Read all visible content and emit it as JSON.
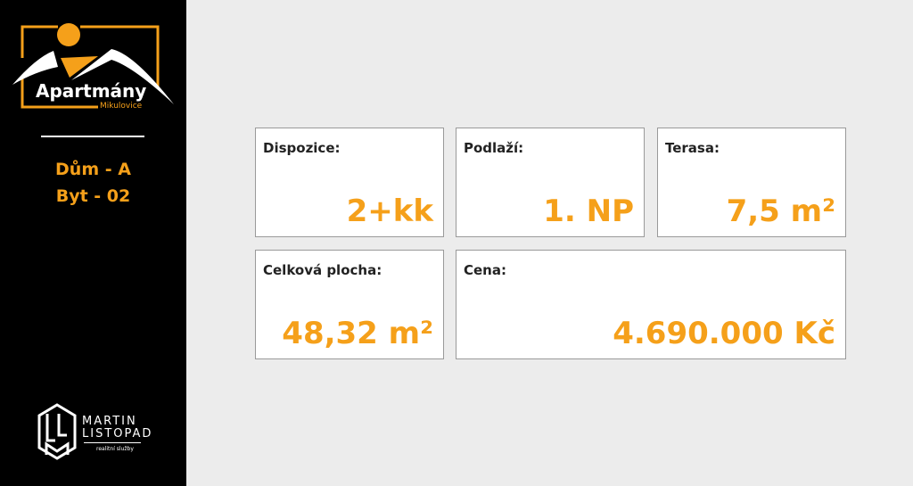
{
  "brand": {
    "title": "Apartmány",
    "subtitle": "Mikulovice"
  },
  "unit": {
    "house": "Dům - A",
    "apartment": "Byt - 02"
  },
  "agency": {
    "line1": "MARTIN",
    "line2": "LISTOPAD",
    "tagline": "realitní služby"
  },
  "cards": [
    {
      "label": "Dispozice:",
      "value": "2+kk"
    },
    {
      "label": "Podlaží:",
      "value": "1. NP"
    },
    {
      "label": "Terasa:",
      "value": "7,5 m²"
    },
    {
      "label": "Celková plocha:",
      "value": "48,32 m²"
    },
    {
      "label": "Cena:",
      "value": "4.690.000 Kč"
    }
  ],
  "colors": {
    "accent": "#f5a01a",
    "sidebar": "#000000",
    "background": "#ececec"
  }
}
